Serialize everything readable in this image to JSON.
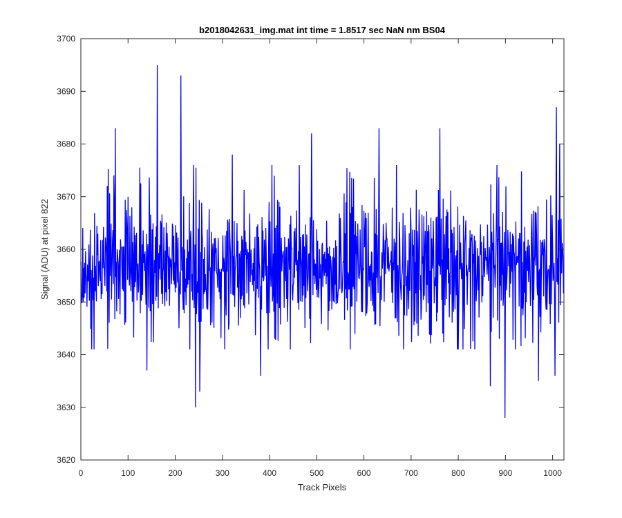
{
  "chart_data": {
    "type": "line",
    "title": "b2018042631_img.mat int time = 1.8517 sec  NaN nm BS04",
    "xlabel": "Track Pixels",
    "ylabel": "Signal (ADU) at pixel 822",
    "xlim": [
      0,
      1024
    ],
    "ylim": [
      3620,
      3700
    ],
    "xticks": [
      0,
      100,
      200,
      300,
      400,
      500,
      600,
      700,
      800,
      900,
      1000
    ],
    "yticks": [
      3620,
      3630,
      3640,
      3650,
      3660,
      3670,
      3680,
      3690,
      3700
    ],
    "grid": false,
    "legend": "none",
    "series": [
      {
        "color": "#0000ff",
        "sample_count": 1024,
        "baseline": 3657,
        "noise_amplitude": 6,
        "peaks": [
          {
            "x": 73,
            "y": 3683
          },
          {
            "x": 162,
            "y": 3695
          },
          {
            "x": 212,
            "y": 3693
          },
          {
            "x": 321,
            "y": 3678
          },
          {
            "x": 489,
            "y": 3682
          },
          {
            "x": 632,
            "y": 3683
          },
          {
            "x": 761,
            "y": 3683
          },
          {
            "x": 1008,
            "y": 3687
          },
          {
            "x": 1015,
            "y": 3680
          }
        ],
        "dips": [
          {
            "x": 140,
            "y": 3637
          },
          {
            "x": 243,
            "y": 3630
          },
          {
            "x": 252,
            "y": 3633
          },
          {
            "x": 381,
            "y": 3636
          },
          {
            "x": 868,
            "y": 3634
          },
          {
            "x": 899,
            "y": 3628
          },
          {
            "x": 970,
            "y": 3635
          },
          {
            "x": 1005,
            "y": 3636
          }
        ]
      }
    ]
  }
}
